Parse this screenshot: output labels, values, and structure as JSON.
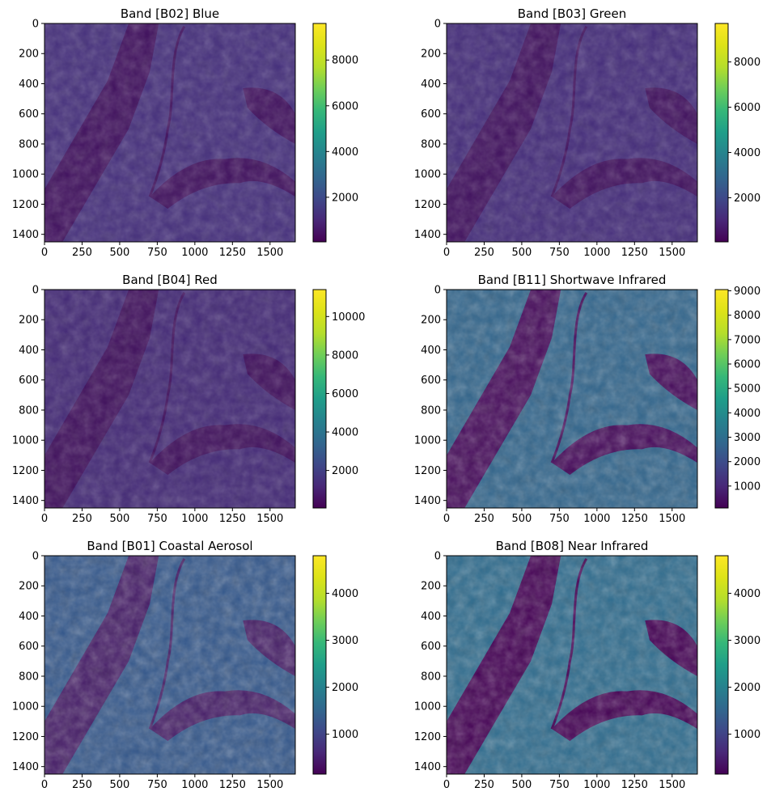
{
  "chart_data": [
    {
      "type": "heatmap",
      "title": "Band [B02] Blue",
      "colormap": "viridis",
      "x_ticks": [
        0,
        250,
        500,
        750,
        1000,
        1250,
        1500
      ],
      "y_ticks": [
        0,
        200,
        400,
        600,
        800,
        1000,
        1200,
        1400
      ],
      "xlim": [
        0,
        1668
      ],
      "ylim": [
        1450,
        0
      ],
      "clim": [
        50,
        9600
      ],
      "colorbar_ticks": [
        2000,
        4000,
        6000,
        8000
      ]
    },
    {
      "type": "heatmap",
      "title": "Band [B03] Green",
      "colormap": "viridis",
      "x_ticks": [
        0,
        250,
        500,
        750,
        1000,
        1250,
        1500
      ],
      "y_ticks": [
        0,
        200,
        400,
        600,
        800,
        1000,
        1200,
        1400
      ],
      "xlim": [
        0,
        1668
      ],
      "ylim": [
        1450,
        0
      ],
      "clim": [
        50,
        9700
      ],
      "colorbar_ticks": [
        2000,
        4000,
        6000,
        8000
      ]
    },
    {
      "type": "heatmap",
      "title": "Band [B04] Red",
      "colormap": "viridis",
      "x_ticks": [
        0,
        250,
        500,
        750,
        1000,
        1250,
        1500
      ],
      "y_ticks": [
        0,
        200,
        400,
        600,
        800,
        1000,
        1200,
        1400
      ],
      "xlim": [
        0,
        1668
      ],
      "ylim": [
        1450,
        0
      ],
      "clim": [
        50,
        11400
      ],
      "colorbar_ticks": [
        2000,
        4000,
        6000,
        8000,
        10000
      ]
    },
    {
      "type": "heatmap",
      "title": "Band [B11] Shortwave Infrared",
      "colormap": "viridis",
      "x_ticks": [
        0,
        250,
        500,
        750,
        1000,
        1250,
        1500
      ],
      "y_ticks": [
        0,
        200,
        400,
        600,
        800,
        1000,
        1200,
        1400
      ],
      "xlim": [
        0,
        1668
      ],
      "ylim": [
        1450,
        0
      ],
      "clim": [
        100,
        9050
      ],
      "colorbar_ticks": [
        1000,
        2000,
        3000,
        4000,
        5000,
        6000,
        7000,
        8000,
        9000
      ]
    },
    {
      "type": "heatmap",
      "title": "Band [B01] Coastal Aerosol",
      "colormap": "viridis",
      "x_ticks": [
        0,
        250,
        500,
        750,
        1000,
        1250,
        1500
      ],
      "y_ticks": [
        0,
        200,
        400,
        600,
        800,
        1000,
        1200,
        1400
      ],
      "xlim": [
        0,
        1668
      ],
      "ylim": [
        1450,
        0
      ],
      "clim": [
        150,
        4800
      ],
      "colorbar_ticks": [
        1000,
        2000,
        3000,
        4000
      ]
    },
    {
      "type": "heatmap",
      "title": "Band [B08] Near Infrared",
      "colormap": "viridis",
      "x_ticks": [
        0,
        250,
        500,
        750,
        1000,
        1250,
        1500
      ],
      "y_ticks": [
        0,
        200,
        400,
        600,
        800,
        1000,
        1200,
        1400
      ],
      "xlim": [
        0,
        1668
      ],
      "ylim": [
        1450,
        0
      ],
      "clim": [
        150,
        4800
      ],
      "colorbar_ticks": [
        1000,
        2000,
        3000,
        4000
      ]
    }
  ]
}
